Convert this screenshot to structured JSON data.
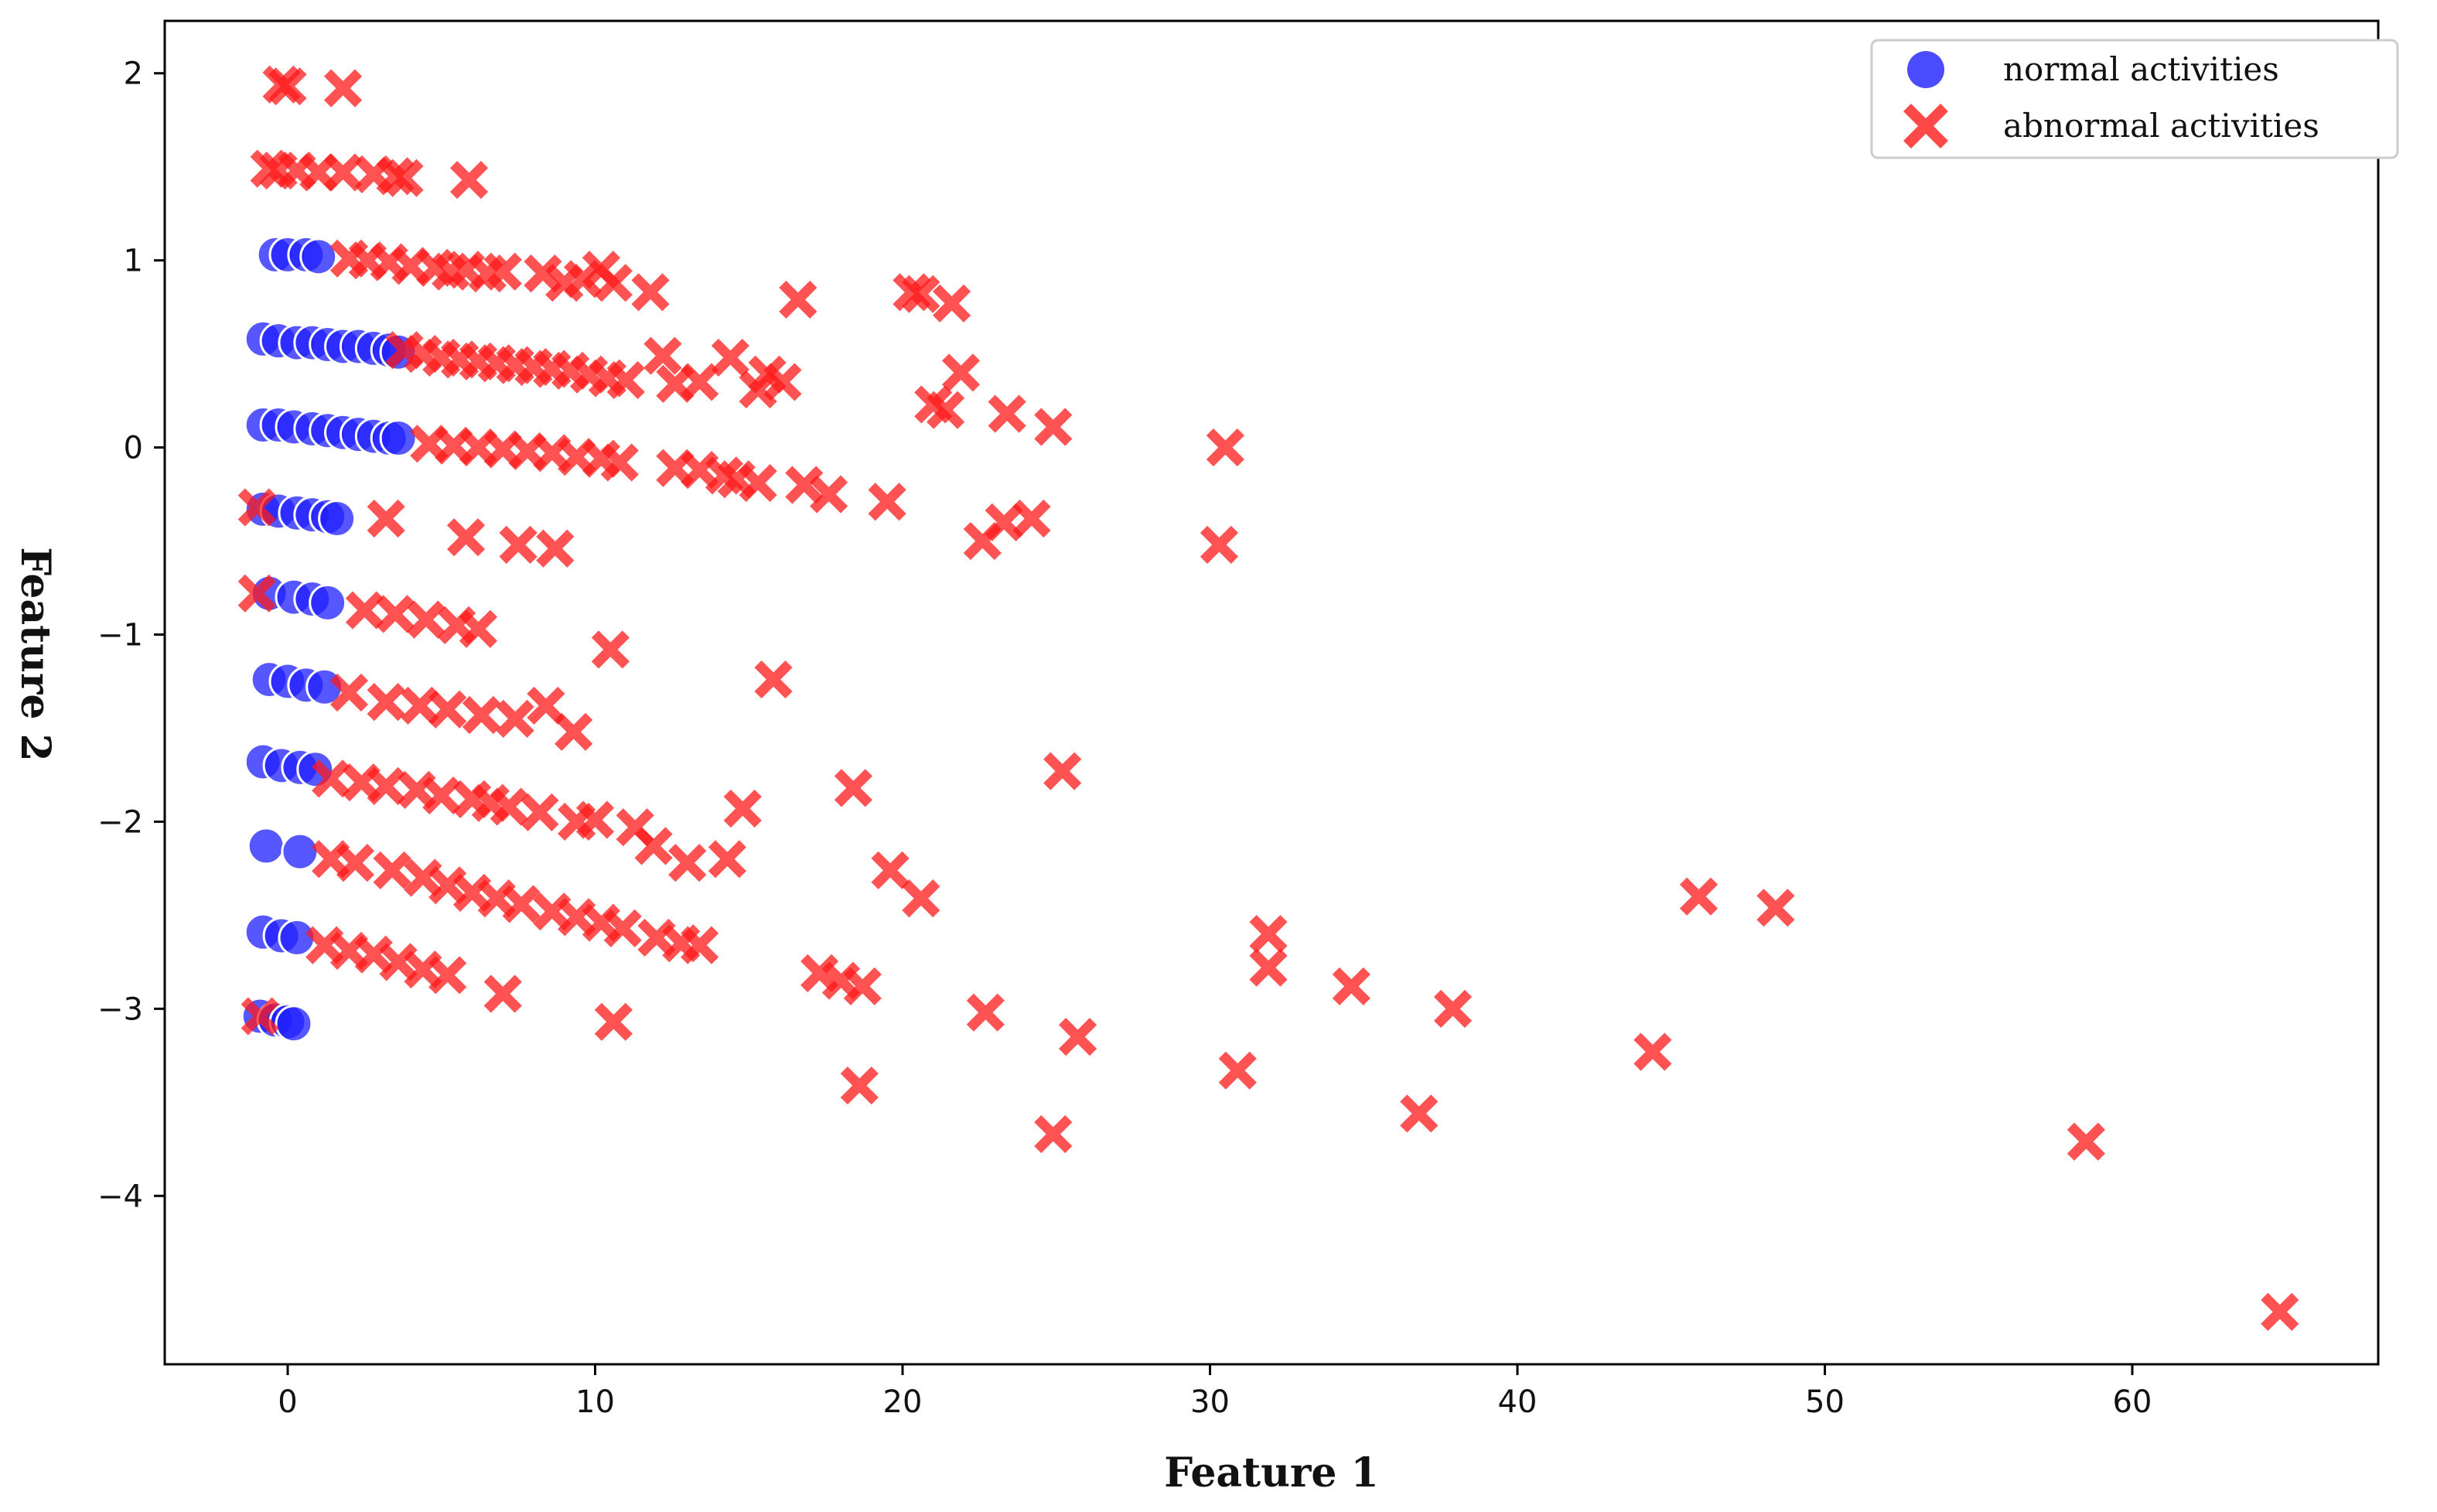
{
  "chart_data": {
    "type": "scatter",
    "title": "",
    "xlabel": "Feature 1",
    "ylabel": "Feature 2",
    "xlim": [
      -4,
      68
    ],
    "ylim": [
      -4.9,
      2.28
    ],
    "xticks": [
      0,
      10,
      20,
      30,
      40,
      50,
      60
    ],
    "yticks": [
      2,
      1,
      0,
      -1,
      -2,
      -3,
      -4
    ],
    "xtick_labels": [
      "0",
      "10",
      "20",
      "30",
      "40",
      "50",
      "60"
    ],
    "ytick_labels": [
      "2",
      "1",
      "0",
      "−1",
      "−2",
      "−3",
      "−4"
    ],
    "grid": false,
    "legend_position": "top-right",
    "series": [
      {
        "name": "normal activities",
        "marker": "circle",
        "color": "#1f1fff",
        "points": [
          [
            -0.4,
            1.03
          ],
          [
            0.0,
            1.03
          ],
          [
            0.6,
            1.03
          ],
          [
            1.0,
            1.02
          ],
          [
            -0.8,
            0.58
          ],
          [
            -0.3,
            0.57
          ],
          [
            0.3,
            0.56
          ],
          [
            0.8,
            0.56
          ],
          [
            1.3,
            0.55
          ],
          [
            1.8,
            0.54
          ],
          [
            2.3,
            0.54
          ],
          [
            2.8,
            0.53
          ],
          [
            3.3,
            0.52
          ],
          [
            3.6,
            0.51
          ],
          [
            -0.8,
            0.12
          ],
          [
            -0.3,
            0.12
          ],
          [
            0.2,
            0.11
          ],
          [
            0.8,
            0.1
          ],
          [
            1.3,
            0.09
          ],
          [
            1.8,
            0.08
          ],
          [
            2.3,
            0.07
          ],
          [
            2.8,
            0.06
          ],
          [
            3.3,
            0.05
          ],
          [
            3.6,
            0.05
          ],
          [
            -0.8,
            -0.33
          ],
          [
            -0.3,
            -0.34
          ],
          [
            0.3,
            -0.35
          ],
          [
            0.8,
            -0.36
          ],
          [
            1.3,
            -0.37
          ],
          [
            1.6,
            -0.38
          ],
          [
            -0.6,
            -0.78
          ],
          [
            0.2,
            -0.8
          ],
          [
            0.8,
            -0.81
          ],
          [
            1.3,
            -0.83
          ],
          [
            -0.6,
            -1.24
          ],
          [
            0.0,
            -1.25
          ],
          [
            0.6,
            -1.27
          ],
          [
            1.2,
            -1.28
          ],
          [
            -0.8,
            -1.68
          ],
          [
            -0.2,
            -1.7
          ],
          [
            0.4,
            -1.71
          ],
          [
            0.9,
            -1.72
          ],
          [
            -0.7,
            -2.13
          ],
          [
            0.4,
            -2.16
          ],
          [
            -0.8,
            -2.59
          ],
          [
            -0.2,
            -2.61
          ],
          [
            0.3,
            -2.62
          ],
          [
            -0.9,
            -3.04
          ],
          [
            -0.4,
            -3.06
          ],
          [
            0.0,
            -3.07
          ],
          [
            0.2,
            -3.08
          ]
        ]
      },
      {
        "name": "abnormal activities",
        "marker": "x",
        "color": "#ff1a1a",
        "points": [
          [
            -0.2,
            1.94
          ],
          [
            0.0,
            1.93
          ],
          [
            1.8,
            1.92
          ],
          [
            -0.6,
            1.49
          ],
          [
            -0.3,
            1.48
          ],
          [
            0.3,
            1.48
          ],
          [
            1.0,
            1.47
          ],
          [
            1.8,
            1.47
          ],
          [
            2.8,
            1.46
          ],
          [
            3.5,
            1.45
          ],
          [
            3.8,
            1.44
          ],
          [
            5.9,
            1.43
          ],
          [
            2.0,
            1.01
          ],
          [
            2.6,
            1.0
          ],
          [
            3.3,
            0.99
          ],
          [
            4.0,
            0.97
          ],
          [
            4.8,
            0.96
          ],
          [
            5.3,
            0.94
          ],
          [
            5.8,
            0.95
          ],
          [
            6.5,
            0.93
          ],
          [
            7.0,
            0.94
          ],
          [
            8.3,
            0.93
          ],
          [
            9.0,
            0.88
          ],
          [
            9.6,
            0.9
          ],
          [
            10.2,
            0.95
          ],
          [
            10.6,
            0.88
          ],
          [
            11.8,
            0.83
          ],
          [
            16.6,
            0.79
          ],
          [
            20.3,
            0.83
          ],
          [
            20.6,
            0.82
          ],
          [
            21.6,
            0.77
          ],
          [
            3.8,
            0.52
          ],
          [
            4.4,
            0.5
          ],
          [
            5.0,
            0.48
          ],
          [
            5.6,
            0.47
          ],
          [
            6.2,
            0.46
          ],
          [
            6.8,
            0.45
          ],
          [
            7.4,
            0.44
          ],
          [
            8.0,
            0.43
          ],
          [
            8.6,
            0.42
          ],
          [
            9.2,
            0.41
          ],
          [
            9.8,
            0.39
          ],
          [
            10.4,
            0.37
          ],
          [
            11.0,
            0.36
          ],
          [
            12.2,
            0.49
          ],
          [
            12.6,
            0.34
          ],
          [
            13.4,
            0.35
          ],
          [
            14.4,
            0.48
          ],
          [
            15.3,
            0.31
          ],
          [
            15.6,
            0.39
          ],
          [
            16.1,
            0.35
          ],
          [
            21.0,
            0.23
          ],
          [
            21.4,
            0.2
          ],
          [
            21.9,
            0.4
          ],
          [
            23.4,
            0.18
          ],
          [
            24.9,
            0.11
          ],
          [
            4.6,
            0.02
          ],
          [
            5.4,
            0.01
          ],
          [
            6.2,
            0.0
          ],
          [
            7.0,
            -0.01
          ],
          [
            7.8,
            -0.02
          ],
          [
            8.6,
            -0.03
          ],
          [
            9.4,
            -0.05
          ],
          [
            10.2,
            -0.06
          ],
          [
            10.8,
            -0.08
          ],
          [
            12.6,
            -0.11
          ],
          [
            13.4,
            -0.12
          ],
          [
            14.2,
            -0.15
          ],
          [
            14.6,
            -0.17
          ],
          [
            15.3,
            -0.19
          ],
          [
            16.8,
            -0.2
          ],
          [
            17.6,
            -0.25
          ],
          [
            19.5,
            -0.29
          ],
          [
            30.5,
            0.0
          ],
          [
            -1.0,
            -0.32
          ],
          [
            3.2,
            -0.38
          ],
          [
            5.8,
            -0.48
          ],
          [
            7.5,
            -0.52
          ],
          [
            8.7,
            -0.54
          ],
          [
            22.6,
            -0.5
          ],
          [
            23.3,
            -0.4
          ],
          [
            24.2,
            -0.38
          ],
          [
            30.3,
            -0.52
          ],
          [
            -1.0,
            -0.78
          ],
          [
            2.5,
            -0.87
          ],
          [
            3.5,
            -0.89
          ],
          [
            4.5,
            -0.92
          ],
          [
            5.5,
            -0.95
          ],
          [
            6.2,
            -0.97
          ],
          [
            10.5,
            -1.08
          ],
          [
            2.0,
            -1.31
          ],
          [
            3.2,
            -1.36
          ],
          [
            4.3,
            -1.38
          ],
          [
            5.2,
            -1.4
          ],
          [
            6.3,
            -1.43
          ],
          [
            7.4,
            -1.45
          ],
          [
            8.4,
            -1.38
          ],
          [
            9.3,
            -1.52
          ],
          [
            15.8,
            -1.24
          ],
          [
            1.4,
            -1.77
          ],
          [
            2.4,
            -1.79
          ],
          [
            3.2,
            -1.81
          ],
          [
            4.2,
            -1.83
          ],
          [
            5.0,
            -1.86
          ],
          [
            6.0,
            -1.88
          ],
          [
            6.6,
            -1.9
          ],
          [
            7.2,
            -1.92
          ],
          [
            8.2,
            -1.95
          ],
          [
            9.4,
            -2.0
          ],
          [
            10.0,
            -1.99
          ],
          [
            11.3,
            -2.03
          ],
          [
            11.9,
            -2.13
          ],
          [
            13.0,
            -2.22
          ],
          [
            14.3,
            -2.2
          ],
          [
            14.8,
            -1.93
          ],
          [
            18.4,
            -1.82
          ],
          [
            25.2,
            -1.73
          ],
          [
            1.4,
            -2.2
          ],
          [
            2.2,
            -2.22
          ],
          [
            3.4,
            -2.26
          ],
          [
            4.4,
            -2.3
          ],
          [
            5.2,
            -2.34
          ],
          [
            6.0,
            -2.38
          ],
          [
            6.8,
            -2.41
          ],
          [
            7.6,
            -2.44
          ],
          [
            8.6,
            -2.48
          ],
          [
            9.4,
            -2.51
          ],
          [
            10.2,
            -2.54
          ],
          [
            10.9,
            -2.57
          ],
          [
            12.0,
            -2.62
          ],
          [
            12.8,
            -2.65
          ],
          [
            13.4,
            -2.66
          ],
          [
            19.6,
            -2.26
          ],
          [
            20.6,
            -2.41
          ],
          [
            1.2,
            -2.66
          ],
          [
            2.0,
            -2.69
          ],
          [
            2.8,
            -2.71
          ],
          [
            3.6,
            -2.75
          ],
          [
            4.4,
            -2.79
          ],
          [
            5.2,
            -2.82
          ],
          [
            7.0,
            -2.92
          ],
          [
            10.6,
            -3.07
          ],
          [
            17.3,
            -2.81
          ],
          [
            18.0,
            -2.85
          ],
          [
            18.7,
            -2.88
          ],
          [
            22.7,
            -3.02
          ],
          [
            25.7,
            -3.15
          ],
          [
            18.6,
            -3.41
          ],
          [
            24.9,
            -3.67
          ],
          [
            30.9,
            -3.33
          ],
          [
            31.9,
            -2.6
          ],
          [
            31.9,
            -2.78
          ],
          [
            34.6,
            -2.88
          ],
          [
            36.8,
            -3.56
          ],
          [
            37.9,
            -3.0
          ],
          [
            44.4,
            -3.23
          ],
          [
            45.9,
            -2.4
          ],
          [
            48.4,
            -2.46
          ],
          [
            58.5,
            -3.71
          ],
          [
            64.8,
            -4.62
          ],
          [
            -0.9,
            -3.04
          ]
        ]
      }
    ]
  }
}
